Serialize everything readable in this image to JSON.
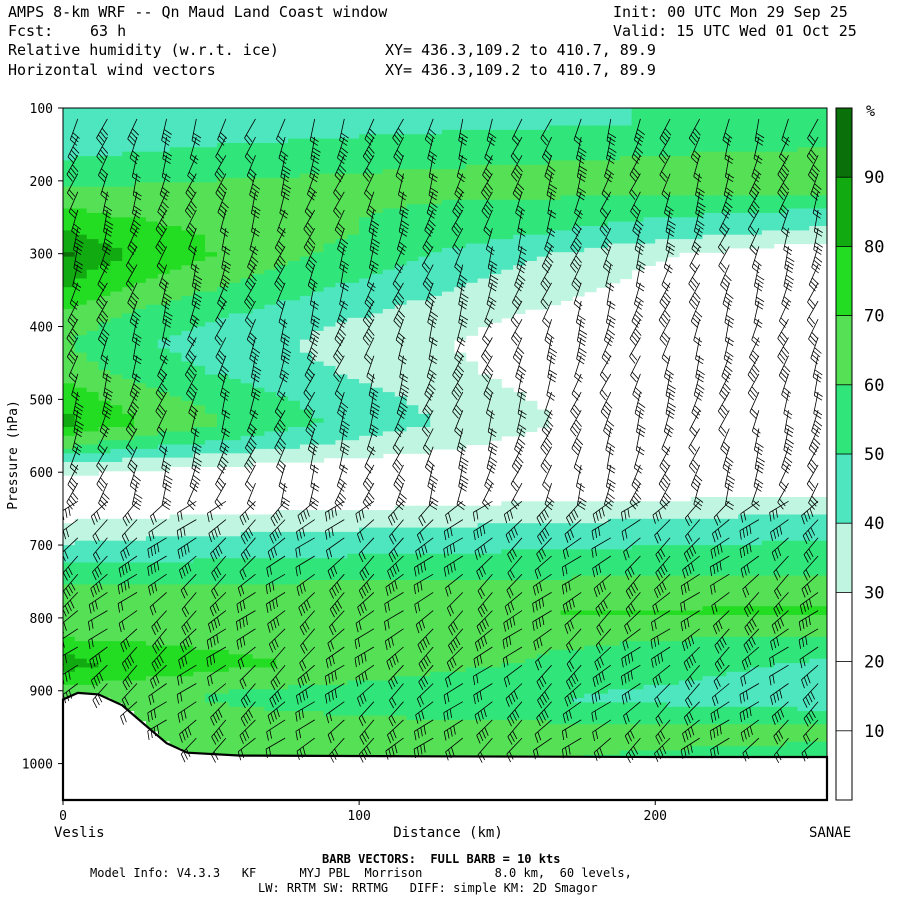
{
  "header": {
    "title": "AMPS 8-km WRF -- Qn Maud Land Coast window",
    "fcst_label": "Fcst:",
    "fcst_value": "63 h",
    "init": "Init: 00 UTC Mon 29 Sep 25",
    "valid": "Valid: 15 UTC Wed 01 Oct 25",
    "field1": "Relative humidity (w.r.t. ice)",
    "field2": "Horizontal wind vectors",
    "xy1": "XY= 436.3,109.2 to 410.7, 89.9",
    "xy2": "XY= 436.3,109.2 to 410.7, 89.9"
  },
  "footer": {
    "barb_line": "BARB VECTORS:  FULL BARB = 10 kts",
    "model_info": "Model Info: V4.3.3   KF      MYJ PBL  Morrison          8.0 km,  60 levels,",
    "physics": "LW: RRTM SW: RRTMG   DIFF: simple KM: 2D Smagor"
  },
  "chart_data": {
    "type": "heatmap",
    "title": "Relative humidity (w.r.t. ice) cross-section",
    "xlabel": "Distance (km)",
    "ylabel": "Pressure (hPa)",
    "xlim": [
      0,
      258
    ],
    "ylim": [
      1050,
      100
    ],
    "x_ticks": [
      0,
      100,
      200
    ],
    "y_ticks": [
      100,
      200,
      300,
      400,
      500,
      600,
      700,
      800,
      900,
      1000
    ],
    "left_endpoint": "Veslis",
    "right_endpoint": "SANAE",
    "colorbar": {
      "unit": "%",
      "labels": [
        "90",
        "80",
        "70",
        "60",
        "50",
        "40",
        "30",
        "20",
        "10"
      ],
      "bins": [
        {
          "min": 0,
          "max": 30,
          "color": "#ffffff"
        },
        {
          "min": 30,
          "max": 40,
          "color": "#bff5e1"
        },
        {
          "min": 40,
          "max": 50,
          "color": "#4de6be"
        },
        {
          "min": 50,
          "max": 60,
          "color": "#30e67a"
        },
        {
          "min": 60,
          "max": 70,
          "color": "#55e055"
        },
        {
          "min": 70,
          "max": 80,
          "color": "#22dd22"
        },
        {
          "min": 80,
          "max": 90,
          "color": "#11aa11"
        },
        {
          "min": 90,
          "max": 100,
          "color": "#0a700a"
        }
      ]
    },
    "rh_profile_left": [
      {
        "p": 120,
        "rh": 42
      },
      {
        "p": 160,
        "rh": 48
      },
      {
        "p": 200,
        "rh": 58
      },
      {
        "p": 240,
        "rh": 72
      },
      {
        "p": 270,
        "rh": 82
      },
      {
        "p": 300,
        "rh": 91
      },
      {
        "p": 340,
        "rh": 80
      },
      {
        "p": 380,
        "rh": 68
      },
      {
        "p": 420,
        "rh": 60
      },
      {
        "p": 460,
        "rh": 66
      },
      {
        "p": 500,
        "rh": 78
      },
      {
        "p": 530,
        "rh": 82
      },
      {
        "p": 560,
        "rh": 62
      },
      {
        "p": 590,
        "rh": 36
      },
      {
        "p": 630,
        "rh": 14
      },
      {
        "p": 665,
        "rh": 30
      },
      {
        "p": 700,
        "rh": 42
      },
      {
        "p": 760,
        "rh": 62
      },
      {
        "p": 820,
        "rh": 68
      },
      {
        "p": 860,
        "rh": 84
      },
      {
        "p": 900,
        "rh": 66
      }
    ],
    "rh_profile_right": [
      {
        "p": 120,
        "rh": 52
      },
      {
        "p": 160,
        "rh": 62
      },
      {
        "p": 200,
        "rh": 68
      },
      {
        "p": 240,
        "rh": 48
      },
      {
        "p": 270,
        "rh": 36
      },
      {
        "p": 300,
        "rh": 18
      },
      {
        "p": 400,
        "rh": 10
      },
      {
        "p": 500,
        "rh": 8
      },
      {
        "p": 600,
        "rh": 12
      },
      {
        "p": 640,
        "rh": 36
      },
      {
        "p": 680,
        "rh": 48
      },
      {
        "p": 720,
        "rh": 56
      },
      {
        "p": 760,
        "rh": 66
      },
      {
        "p": 790,
        "rh": 72
      },
      {
        "p": 820,
        "rh": 60
      },
      {
        "p": 860,
        "rh": 48
      },
      {
        "p": 910,
        "rh": 44
      },
      {
        "p": 950,
        "rh": 62
      },
      {
        "p": 985,
        "rh": 58
      }
    ],
    "terrain": [
      {
        "x": 0,
        "p": 912
      },
      {
        "x": 5,
        "p": 903
      },
      {
        "x": 12,
        "p": 905
      },
      {
        "x": 20,
        "p": 920
      },
      {
        "x": 28,
        "p": 948
      },
      {
        "x": 35,
        "p": 972
      },
      {
        "x": 42,
        "p": 985
      },
      {
        "x": 60,
        "p": 989
      },
      {
        "x": 120,
        "p": 990
      },
      {
        "x": 200,
        "p": 991
      },
      {
        "x": 258,
        "p": 991
      }
    ],
    "wind_barbs": {
      "barb_unit": "FULL BARB = 10 kts",
      "column_spacing_km": 10,
      "level_spacing_hpa": 25
    }
  }
}
